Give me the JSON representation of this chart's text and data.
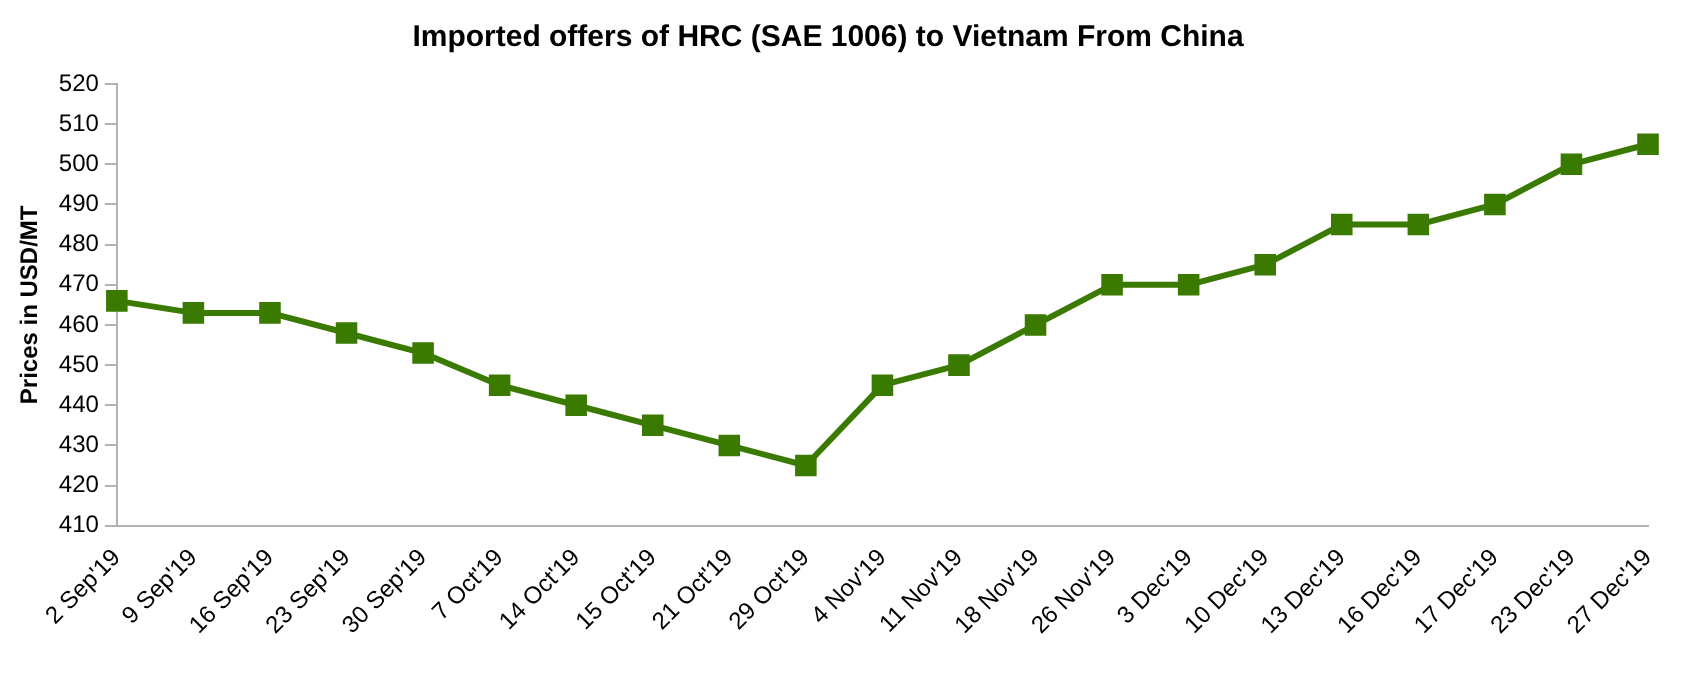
{
  "chart_data": {
    "type": "line",
    "title": "Imported offers of HRC (SAE 1006) to Vietnam From China",
    "ylabel": "Prices in USD/MT",
    "categories": [
      "2 Sep'19",
      "9 Sep'19",
      "16 Sep'19",
      "23 Sep'19",
      "30 Sep'19",
      "7 Oct'19",
      "14 Oct'19",
      "15 Oct'19",
      "21 Oct'19",
      "29 Oct'19",
      "4 Nov'19",
      "11 Nov'19",
      "18 Nov'19",
      "26 Nov'19",
      "3 Dec'19",
      "10 Dec'19",
      "13 Dec'19",
      "16 Dec'19",
      "17 Dec'19",
      "23 Dec'19",
      "27 Dec'19"
    ],
    "series": [
      {
        "color": "#3a7a00",
        "values": [
          466,
          463,
          463,
          458,
          453,
          445,
          440,
          435,
          430,
          425,
          445,
          450,
          460,
          470,
          470,
          475,
          485,
          485,
          490,
          500,
          505
        ]
      }
    ],
    "ylim": [
      410,
      520
    ],
    "yticks": [
      410,
      420,
      430,
      440,
      450,
      460,
      470,
      480,
      490,
      500,
      510,
      520
    ],
    "grid": false,
    "legend": false,
    "marker": "square",
    "line_style": "solid"
  }
}
